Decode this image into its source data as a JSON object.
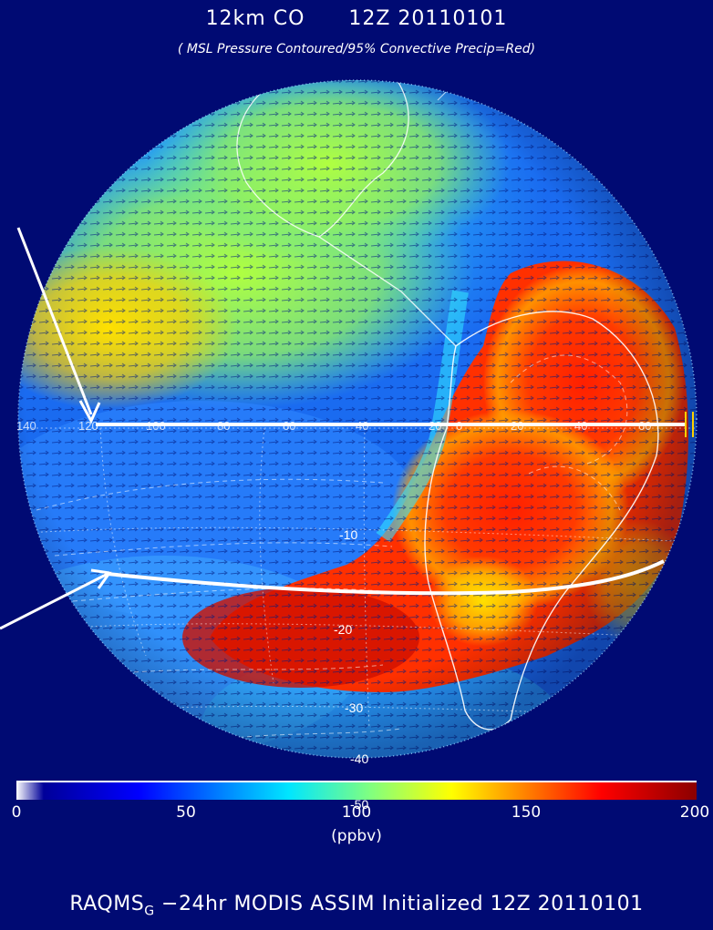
{
  "title": {
    "field": "12km CO",
    "time": "12Z 20110101"
  },
  "subtitle": "( MSL Pressure Contoured/95% Convective Precip=Red)",
  "map": {
    "longitude_labels": [
      "140",
      "120",
      "100",
      "80",
      "60",
      "40",
      "20",
      "0",
      "20",
      "40",
      "60"
    ],
    "latitude_labels": [
      "0",
      "-10",
      "-20",
      "-30",
      "-40",
      "-50"
    ]
  },
  "colorbar": {
    "min": 0,
    "max": 200,
    "ticks": [
      "0",
      "50",
      "100",
      "150",
      "200"
    ],
    "unit": "(ppbv)",
    "colors": [
      "#ffffff",
      "#000099",
      "#0000ff",
      "#0080ff",
      "#00e5ff",
      "#80ff80",
      "#ffff00",
      "#ff8000",
      "#ff0000",
      "#8b0000"
    ]
  },
  "footer": {
    "model": "RAQMS",
    "subscript": "G",
    "text": " −24hr MODIS ASSIM Initialized 12Z 20110101"
  }
}
